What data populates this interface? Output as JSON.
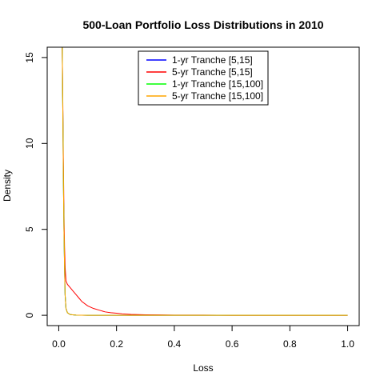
{
  "chart_data": {
    "type": "line",
    "title": "500-Loan Portfolio Loss Distributions in 2010",
    "xlabel": "Loss",
    "ylabel": "Density",
    "xlim": [
      -0.04,
      1.04
    ],
    "ylim": [
      -0.6,
      15.6
    ],
    "x_ticks": [
      0.0,
      0.2,
      0.4,
      0.6,
      0.8,
      1.0
    ],
    "x_tick_labels": [
      "0.0",
      "0.2",
      "0.4",
      "0.6",
      "0.8",
      "1.0"
    ],
    "y_ticks": [
      0,
      5,
      10,
      15
    ],
    "y_tick_labels": [
      "0",
      "5",
      "10",
      "15"
    ],
    "legend_position": "top-center",
    "grid": false,
    "series": [
      {
        "name": "1-yr Tranche [5,15]",
        "color": "#0000ff",
        "x": [
          0.012,
          0.014,
          0.016,
          0.018,
          0.02,
          0.022,
          0.025,
          0.03,
          0.04,
          0.06,
          0.1,
          0.2,
          0.4,
          0.6,
          0.8,
          1.0
        ],
        "y": [
          15.6,
          12.0,
          8.0,
          5.0,
          2.8,
          1.2,
          0.4,
          0.15,
          0.04,
          0.01,
          0.0,
          0.0,
          0.0,
          0.0,
          0.0,
          0.0
        ]
      },
      {
        "name": "5-yr Tranche [5,15]",
        "color": "#ff0000",
        "x": [
          0.012,
          0.014,
          0.016,
          0.018,
          0.02,
          0.022,
          0.025,
          0.03,
          0.04,
          0.05,
          0.06,
          0.07,
          0.08,
          0.1,
          0.12,
          0.14,
          0.16,
          0.18,
          0.2,
          0.22,
          0.25,
          0.3,
          0.35,
          0.4,
          0.5,
          0.6,
          0.8,
          1.0
        ],
        "y": [
          15.6,
          12.5,
          9.0,
          6.0,
          4.0,
          2.8,
          2.0,
          1.8,
          1.6,
          1.4,
          1.2,
          1.0,
          0.8,
          0.55,
          0.4,
          0.3,
          0.2,
          0.15,
          0.12,
          0.08,
          0.05,
          0.03,
          0.02,
          0.01,
          0.01,
          0.0,
          0.0,
          0.0
        ]
      },
      {
        "name": "1-yr Tranche [15,100]",
        "color": "#00ff00",
        "x": [
          0.012,
          0.014,
          0.016,
          0.018,
          0.02,
          0.022,
          0.025,
          0.03,
          0.04,
          0.06,
          0.1,
          0.2,
          0.4,
          0.6,
          0.8,
          1.0
        ],
        "y": [
          15.6,
          12.0,
          8.0,
          5.0,
          2.8,
          1.2,
          0.4,
          0.15,
          0.04,
          0.01,
          0.0,
          0.0,
          0.0,
          0.0,
          0.0,
          0.0
        ]
      },
      {
        "name": "5-yr Tranche [15,100]",
        "color": "#ffa500",
        "x": [
          0.012,
          0.014,
          0.016,
          0.018,
          0.02,
          0.022,
          0.025,
          0.03,
          0.04,
          0.06,
          0.1,
          0.2,
          0.4,
          0.6,
          0.8,
          1.0
        ],
        "y": [
          15.6,
          12.0,
          8.0,
          5.0,
          2.8,
          1.2,
          0.4,
          0.15,
          0.04,
          0.01,
          0.0,
          0.0,
          0.0,
          0.0,
          0.0,
          0.0
        ]
      }
    ]
  }
}
